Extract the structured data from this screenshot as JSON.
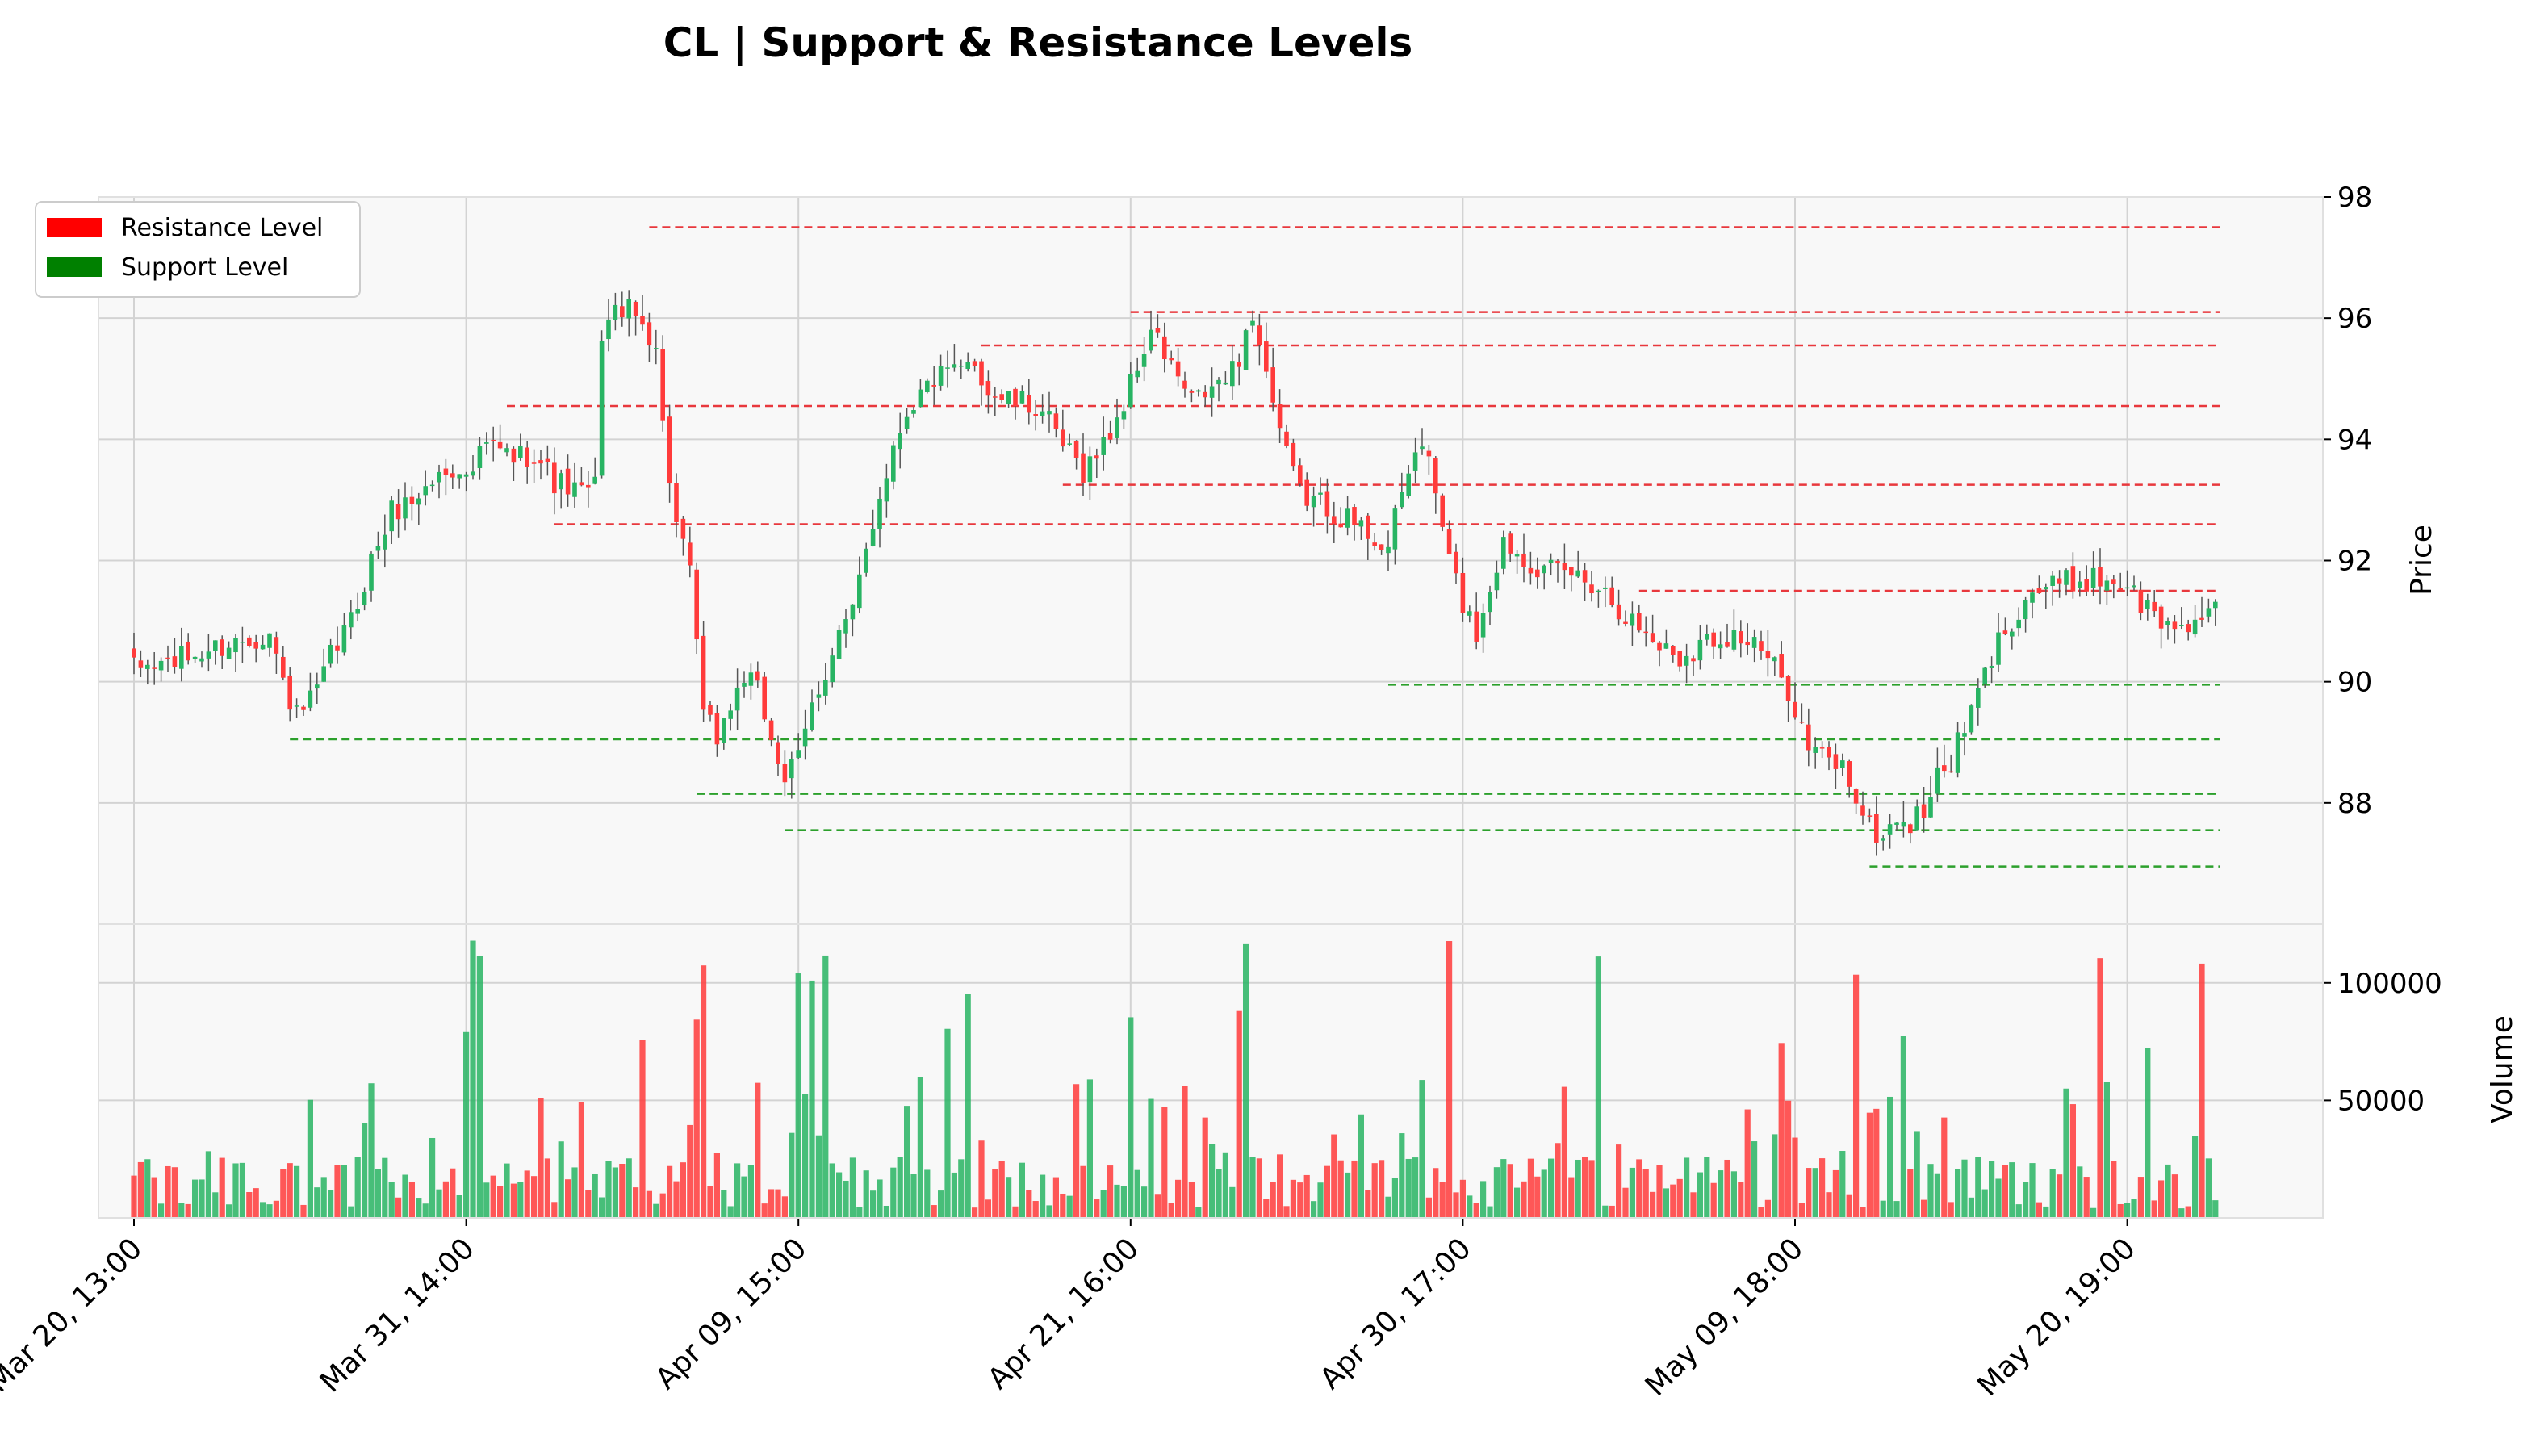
{
  "chart_data": {
    "type": "candlestick",
    "title": "CL | Support & Resistance Levels",
    "price_panel": {
      "ylabel": "Price",
      "ylim": [
        86.0,
        98.0
      ],
      "yticks": [
        88,
        90,
        92,
        94,
        96,
        98
      ],
      "grid": true,
      "legend_position": "top-left",
      "legend": [
        {
          "label": "Resistance Level",
          "color": "#ff0000"
        },
        {
          "label": "Support Level",
          "color": "#008000"
        }
      ]
    },
    "volume_panel": {
      "ylabel": "Volume",
      "ylim": [
        0,
        125000
      ],
      "yticks": [
        50000,
        100000
      ],
      "yticklabels": [
        "50000",
        "100000"
      ]
    },
    "x_axis": {
      "n_bars": 308,
      "ticks": [
        {
          "index": 0,
          "label": "Mar 20, 13:00"
        },
        {
          "index": 49,
          "label": "Mar 31, 14:00"
        },
        {
          "index": 98,
          "label": "Apr 09, 15:00"
        },
        {
          "index": 147,
          "label": "Apr 21, 16:00"
        },
        {
          "index": 196,
          "label": "Apr 30, 17:00"
        },
        {
          "index": 245,
          "label": "May 09, 18:00"
        },
        {
          "index": 294,
          "label": "May 20, 19:00"
        }
      ]
    },
    "price_anchors": [
      [
        0,
        90.2
      ],
      [
        8,
        90.4
      ],
      [
        16,
        90.7
      ],
      [
        20,
        90.8
      ],
      [
        22,
        90.0
      ],
      [
        24,
        89.4
      ],
      [
        27,
        89.8
      ],
      [
        29,
        90.4
      ],
      [
        32,
        91.0
      ],
      [
        35,
        92.0
      ],
      [
        38,
        92.8
      ],
      [
        41,
        93.0
      ],
      [
        45,
        93.4
      ],
      [
        48,
        93.6
      ],
      [
        49,
        93.3
      ],
      [
        52,
        93.9
      ],
      [
        56,
        93.7
      ],
      [
        59,
        93.8
      ],
      [
        62,
        93.3
      ],
      [
        66,
        93.1
      ],
      [
        68,
        93.2
      ],
      [
        69,
        95.8
      ],
      [
        72,
        96.2
      ],
      [
        75,
        95.9
      ],
      [
        77,
        95.6
      ],
      [
        78,
        94.2
      ],
      [
        80,
        92.6
      ],
      [
        82,
        91.7
      ],
      [
        83,
        90.7
      ],
      [
        84,
        89.4
      ],
      [
        86,
        89.1
      ],
      [
        88,
        89.6
      ],
      [
        90,
        90.1
      ],
      [
        92,
        89.8
      ],
      [
        94,
        89.1
      ],
      [
        96,
        88.4
      ],
      [
        98,
        88.7
      ],
      [
        100,
        89.6
      ],
      [
        102,
        90.2
      ],
      [
        104,
        90.8
      ],
      [
        106,
        91.1
      ],
      [
        108,
        92.2
      ],
      [
        110,
        93.1
      ],
      [
        112,
        93.9
      ],
      [
        114,
        94.5
      ],
      [
        118,
        95.0
      ],
      [
        122,
        95.1
      ],
      [
        124,
        95.3
      ],
      [
        126,
        94.8
      ],
      [
        130,
        94.6
      ],
      [
        134,
        94.5
      ],
      [
        136,
        94.0
      ],
      [
        140,
        93.5
      ],
      [
        143,
        93.9
      ],
      [
        146,
        94.6
      ],
      [
        147,
        94.9
      ],
      [
        150,
        95.8
      ],
      [
        153,
        95.2
      ],
      [
        156,
        94.6
      ],
      [
        160,
        94.9
      ],
      [
        163,
        95.2
      ],
      [
        164,
        96.0
      ],
      [
        166,
        95.7
      ],
      [
        168,
        94.6
      ],
      [
        170,
        93.7
      ],
      [
        172,
        93.1
      ],
      [
        176,
        92.9
      ],
      [
        180,
        92.6
      ],
      [
        183,
        92.4
      ],
      [
        185,
        92.2
      ],
      [
        188,
        93.5
      ],
      [
        190,
        94.0
      ],
      [
        192,
        93.1
      ],
      [
        194,
        92.0
      ],
      [
        196,
        91.3
      ],
      [
        198,
        90.8
      ],
      [
        200,
        91.6
      ],
      [
        202,
        92.3
      ],
      [
        205,
        92.1
      ],
      [
        208,
        91.8
      ],
      [
        212,
        91.8
      ],
      [
        216,
        91.6
      ],
      [
        218,
        91.4
      ],
      [
        220,
        91.1
      ],
      [
        224,
        90.7
      ],
      [
        228,
        90.4
      ],
      [
        232,
        90.7
      ],
      [
        236,
        90.8
      ],
      [
        240,
        90.5
      ],
      [
        244,
        89.9
      ],
      [
        245,
        89.6
      ],
      [
        247,
        88.9
      ],
      [
        250,
        88.7
      ],
      [
        252,
        88.6
      ],
      [
        254,
        88.1
      ],
      [
        256,
        87.6
      ],
      [
        258,
        87.4
      ],
      [
        260,
        87.8
      ],
      [
        262,
        87.6
      ],
      [
        264,
        87.9
      ],
      [
        266,
        88.4
      ],
      [
        268,
        88.7
      ],
      [
        270,
        89.2
      ],
      [
        272,
        89.8
      ],
      [
        274,
        90.4
      ],
      [
        276,
        90.9
      ],
      [
        278,
        91.2
      ],
      [
        280,
        91.5
      ],
      [
        284,
        91.6
      ],
      [
        288,
        91.7
      ],
      [
        291,
        91.7
      ],
      [
        294,
        91.6
      ],
      [
        296,
        91.3
      ],
      [
        298,
        91.1
      ],
      [
        300,
        90.9
      ],
      [
        303,
        91.0
      ],
      [
        307,
        91.1
      ]
    ],
    "resistance_levels": [
      {
        "price": 97.5,
        "start_index": 76
      },
      {
        "price": 96.1,
        "start_index": 147
      },
      {
        "price": 95.55,
        "start_index": 125
      },
      {
        "price": 94.55,
        "start_index": 55
      },
      {
        "price": 93.25,
        "start_index": 137
      },
      {
        "price": 92.6,
        "start_index": 62
      },
      {
        "price": 91.5,
        "start_index": 222
      }
    ],
    "support_levels": [
      {
        "price": 89.95,
        "start_index": 185
      },
      {
        "price": 89.05,
        "start_index": 23
      },
      {
        "price": 88.15,
        "start_index": 83
      },
      {
        "price": 87.55,
        "start_index": 96
      },
      {
        "price": 86.95,
        "start_index": 256
      }
    ],
    "colors": {
      "up": "#28b463",
      "down": "#ff3b3b",
      "resistance": "#e8383d",
      "support": "#2ca02c",
      "panel_background": "#f8f8f8",
      "grid": "#d3d3d3"
    }
  }
}
